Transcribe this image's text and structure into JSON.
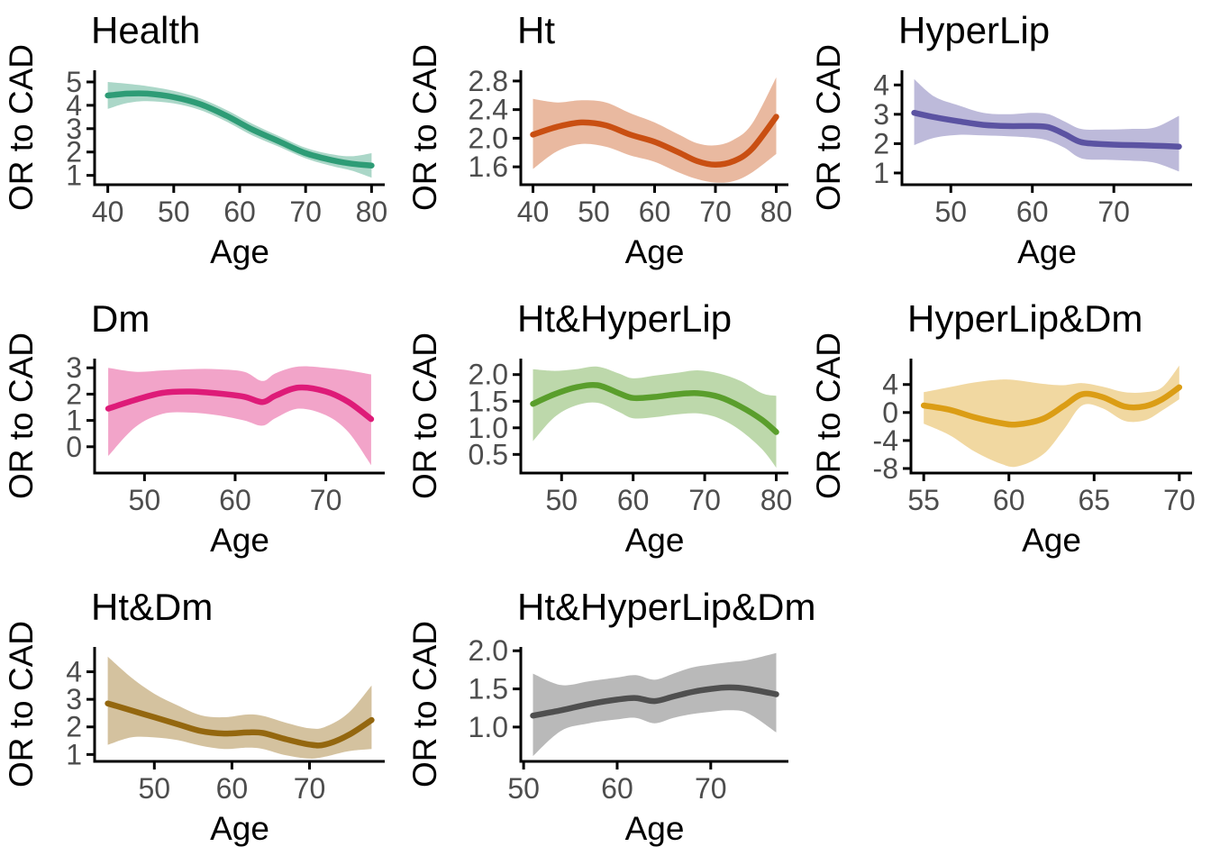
{
  "figure": {
    "xlabel": "Age",
    "ylabel": "OR to CAD",
    "axis_color": "#000000",
    "tick_label_color": "#4d4d4d",
    "ribbon_opacity": 0.4
  },
  "chart_data": [
    {
      "type": "line",
      "title": "Health",
      "color": "#2E9C76",
      "xlabel": "Age",
      "ylabel": "OR to CAD",
      "xlim": [
        38,
        82
      ],
      "ylim": [
        0.6,
        5.5
      ],
      "xticks": [
        40,
        50,
        60,
        70,
        80
      ],
      "xtick_labels": [
        "40",
        "50",
        "60",
        "70",
        "80"
      ],
      "yticks": [
        1,
        2,
        3,
        4,
        5
      ],
      "ytick_labels": [
        "1",
        "2",
        "3",
        "4",
        "5"
      ],
      "x": [
        40,
        43,
        46,
        50,
        54,
        58,
        62,
        66,
        70,
        74,
        77,
        80
      ],
      "y": [
        4.42,
        4.5,
        4.5,
        4.35,
        4.05,
        3.55,
        2.95,
        2.45,
        1.95,
        1.65,
        1.5,
        1.42
      ],
      "hi": [
        5.0,
        4.92,
        4.82,
        4.62,
        4.3,
        3.8,
        3.2,
        2.68,
        2.18,
        1.9,
        1.82,
        1.95
      ],
      "lo": [
        3.85,
        4.1,
        4.18,
        4.08,
        3.8,
        3.3,
        2.7,
        2.22,
        1.73,
        1.4,
        1.2,
        0.9
      ]
    },
    {
      "type": "line",
      "title": "Ht",
      "color": "#C94F12",
      "xlabel": "Age",
      "ylabel": "OR to CAD",
      "xlim": [
        38,
        82
      ],
      "ylim": [
        1.35,
        2.95
      ],
      "xticks": [
        40,
        50,
        60,
        70,
        80
      ],
      "xtick_labels": [
        "40",
        "50",
        "60",
        "70",
        "80"
      ],
      "yticks": [
        1.6,
        2.0,
        2.4,
        2.8
      ],
      "ytick_labels": [
        "1.6",
        "2.0",
        "2.4",
        "2.8"
      ],
      "x": [
        40,
        44,
        48,
        52,
        56,
        60,
        64,
        67,
        70,
        73,
        76,
        80
      ],
      "y": [
        2.05,
        2.16,
        2.22,
        2.18,
        2.05,
        1.95,
        1.8,
        1.68,
        1.63,
        1.68,
        1.85,
        2.3
      ],
      "hi": [
        2.55,
        2.5,
        2.53,
        2.5,
        2.35,
        2.22,
        2.05,
        1.93,
        1.9,
        1.98,
        2.2,
        2.85
      ],
      "lo": [
        1.57,
        1.82,
        1.92,
        1.88,
        1.76,
        1.67,
        1.52,
        1.43,
        1.38,
        1.4,
        1.52,
        1.78
      ]
    },
    {
      "type": "line",
      "title": "HyperLip",
      "color": "#5B53A2",
      "xlabel": "Age",
      "ylabel": "OR to CAD",
      "xlim": [
        44,
        79.6
      ],
      "ylim": [
        0.6,
        4.5
      ],
      "xticks": [
        50,
        60,
        70
      ],
      "xtick_labels": [
        "50",
        "60",
        "70"
      ],
      "yticks": [
        1,
        2,
        3,
        4
      ],
      "ytick_labels": [
        "1",
        "2",
        "3",
        "4"
      ],
      "x": [
        45.5,
        48,
        51,
        54,
        57,
        60,
        62,
        64,
        66,
        69,
        72,
        75,
        78
      ],
      "y": [
        3.05,
        2.9,
        2.76,
        2.64,
        2.6,
        2.6,
        2.56,
        2.32,
        2.05,
        1.98,
        1.95,
        1.93,
        1.9
      ],
      "hi": [
        4.2,
        3.6,
        3.3,
        3.05,
        3.0,
        3.05,
        3.0,
        2.75,
        2.5,
        2.48,
        2.5,
        2.55,
        2.95
      ],
      "lo": [
        1.95,
        2.2,
        2.3,
        2.28,
        2.25,
        2.2,
        2.1,
        1.85,
        1.5,
        1.45,
        1.42,
        1.35,
        1.05
      ]
    },
    {
      "type": "line",
      "title": "Dm",
      "color": "#DE1B78",
      "xlabel": "Age",
      "ylabel": "OR to CAD",
      "xlim": [
        44.5,
        76.5
      ],
      "ylim": [
        -1.0,
        3.35
      ],
      "xticks": [
        50,
        60,
        70
      ],
      "xtick_labels": [
        "50",
        "60",
        "70"
      ],
      "yticks": [
        0,
        1,
        2,
        3
      ],
      "ytick_labels": [
        "0",
        "1",
        "2",
        "3"
      ],
      "x": [
        46,
        49,
        52,
        55,
        58,
        61,
        63,
        64.5,
        67,
        70,
        72.5,
        75
      ],
      "y": [
        1.45,
        1.78,
        2.05,
        2.1,
        2.03,
        1.9,
        1.7,
        1.95,
        2.25,
        2.1,
        1.7,
        1.05
      ],
      "hi": [
        3.0,
        2.85,
        2.9,
        2.95,
        2.95,
        2.85,
        2.5,
        2.8,
        3.05,
        3.0,
        2.9,
        2.75
      ],
      "lo": [
        -0.35,
        0.75,
        1.25,
        1.3,
        1.2,
        1.0,
        0.8,
        1.1,
        1.45,
        1.2,
        0.55,
        -0.7
      ]
    },
    {
      "type": "line",
      "title": "Ht&HyperLip",
      "color": "#5A9E2C",
      "xlabel": "Age",
      "ylabel": "OR to CAD",
      "xlim": [
        44.3,
        81.7
      ],
      "ylim": [
        0.15,
        2.3
      ],
      "xticks": [
        50,
        60,
        70,
        80
      ],
      "xtick_labels": [
        "50",
        "60",
        "70",
        "80"
      ],
      "yticks": [
        0.5,
        1.0,
        1.5,
        2.0
      ],
      "ytick_labels": [
        "0.5",
        "1.0",
        "1.5",
        "2.0"
      ],
      "x": [
        46,
        49,
        52,
        55,
        58,
        60,
        63,
        66,
        69,
        72,
        75,
        78,
        80
      ],
      "y": [
        1.45,
        1.63,
        1.76,
        1.8,
        1.65,
        1.56,
        1.58,
        1.63,
        1.65,
        1.58,
        1.4,
        1.15,
        0.92
      ],
      "hi": [
        2.1,
        2.07,
        2.1,
        2.15,
        2.02,
        1.93,
        1.98,
        2.03,
        2.08,
        2.02,
        1.88,
        1.65,
        1.6
      ],
      "lo": [
        0.75,
        1.2,
        1.42,
        1.47,
        1.3,
        1.18,
        1.2,
        1.25,
        1.27,
        1.18,
        0.95,
        0.6,
        0.25
      ]
    },
    {
      "type": "line",
      "title": "HyperLip&Dm",
      "color": "#DB9D15",
      "xlabel": "Age",
      "ylabel": "OR to CAD",
      "xlim": [
        54.25,
        70.75
      ],
      "ylim": [
        -8.65,
        7.7
      ],
      "xticks": [
        55,
        60,
        65,
        70
      ],
      "xtick_labels": [
        "55",
        "60",
        "65",
        "70"
      ],
      "yticks": [
        -8,
        -4,
        0,
        4
      ],
      "ytick_labels": [
        "-8",
        "-4",
        "0",
        "4"
      ],
      "x": [
        55,
        56.5,
        58,
        59.5,
        60.5,
        62,
        63.2,
        64.3,
        65.5,
        66.8,
        68,
        69,
        70
      ],
      "y": [
        1.0,
        0.4,
        -0.7,
        -1.5,
        -1.7,
        -0.9,
        0.9,
        2.6,
        2.2,
        0.85,
        0.9,
        1.9,
        3.6
      ],
      "hi": [
        2.9,
        3.6,
        4.3,
        4.7,
        4.6,
        4.1,
        3.9,
        4.2,
        3.7,
        2.9,
        2.9,
        3.6,
        6.7
      ],
      "lo": [
        -1.6,
        -3.2,
        -5.6,
        -7.3,
        -7.7,
        -6.0,
        -2.5,
        1.0,
        0.6,
        -1.2,
        -1.1,
        0.3,
        1.9
      ]
    },
    {
      "type": "line",
      "title": "Ht&Dm",
      "color": "#94670F",
      "xlabel": "Age",
      "ylabel": "OR to CAD",
      "xlim": [
        42.3,
        79.7
      ],
      "ylim": [
        0.75,
        4.9
      ],
      "xticks": [
        50,
        60,
        70
      ],
      "xtick_labels": [
        "50",
        "60",
        "70"
      ],
      "yticks": [
        1,
        2,
        3,
        4
      ],
      "ytick_labels": [
        "1",
        "2",
        "3",
        "4"
      ],
      "x": [
        44,
        47,
        50,
        53,
        56,
        59,
        62,
        64,
        67,
        70,
        72,
        75,
        78
      ],
      "y": [
        2.85,
        2.6,
        2.35,
        2.1,
        1.85,
        1.76,
        1.8,
        1.78,
        1.55,
        1.36,
        1.36,
        1.7,
        2.25
      ],
      "hi": [
        4.55,
        3.8,
        3.2,
        2.78,
        2.42,
        2.35,
        2.45,
        2.4,
        2.15,
        1.95,
        2.0,
        2.5,
        3.5
      ],
      "lo": [
        1.35,
        1.62,
        1.62,
        1.52,
        1.32,
        1.2,
        1.25,
        1.2,
        0.97,
        0.85,
        0.92,
        1.12,
        1.2
      ]
    },
    {
      "type": "line",
      "title": "Ht&HyperLip&Dm",
      "color": "#4F4F4F",
      "xlabel": "Age",
      "ylabel": "OR to CAD",
      "xlim": [
        49.7,
        78.3
      ],
      "ylim": [
        0.55,
        2.05
      ],
      "xticks": [
        50,
        60,
        70
      ],
      "xtick_labels": [
        "50",
        "60",
        "70"
      ],
      "yticks": [
        1.0,
        1.5,
        2.0
      ],
      "ytick_labels": [
        "1.0",
        "1.5",
        "2.0"
      ],
      "x": [
        51,
        54,
        57,
        60,
        62,
        64,
        66,
        68,
        70,
        72,
        74,
        77
      ],
      "y": [
        1.15,
        1.22,
        1.3,
        1.36,
        1.38,
        1.34,
        1.4,
        1.46,
        1.5,
        1.52,
        1.5,
        1.43
      ],
      "hi": [
        1.7,
        1.55,
        1.6,
        1.65,
        1.68,
        1.62,
        1.7,
        1.78,
        1.82,
        1.85,
        1.88,
        1.97
      ],
      "lo": [
        0.62,
        0.95,
        1.05,
        1.1,
        1.12,
        1.05,
        1.12,
        1.17,
        1.2,
        1.22,
        1.18,
        0.93
      ]
    }
  ]
}
